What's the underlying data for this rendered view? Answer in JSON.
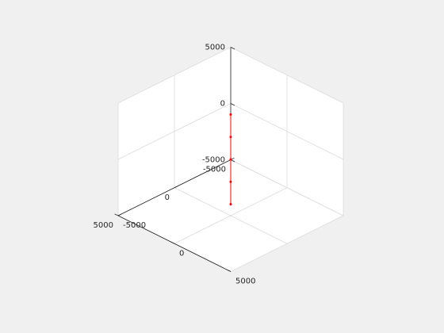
{
  "chart_data": {
    "type": "line",
    "view": "3d-isometric",
    "title": "",
    "xlabel": "",
    "ylabel": "",
    "zlabel": "",
    "xlim": [
      -5000,
      5000
    ],
    "ylim": [
      -5000,
      5000
    ],
    "zlim": [
      -5000,
      5000
    ],
    "grid": true,
    "box": false,
    "x_tick_labels": [
      "-5000",
      "0",
      "5000"
    ],
    "y_tick_labels": [
      "-5000",
      "0",
      "5000"
    ],
    "z_tick_labels": [
      "-5000",
      "0",
      "5000"
    ],
    "series": [
      {
        "color": "#ff0000",
        "marker": "dot",
        "points": [
          {
            "x": 4000,
            "y": 4000,
            "z": 0
          },
          {
            "x": 2000,
            "y": 2000,
            "z": 0
          },
          {
            "x": 0,
            "y": 0,
            "z": 0
          },
          {
            "x": -2000,
            "y": -2000,
            "z": 0
          },
          {
            "x": -4000,
            "y": -4000,
            "z": 0
          }
        ]
      },
      {
        "color": "#ff0000",
        "marker": "dot",
        "points": [
          {
            "x": 0,
            "y": 0,
            "z": 4000
          },
          {
            "x": 0,
            "y": 0,
            "z": 2000
          },
          {
            "x": 0,
            "y": 0,
            "z": 0
          },
          {
            "x": 0,
            "y": 0,
            "z": -2000
          },
          {
            "x": 0,
            "y": 0,
            "z": -4000
          }
        ]
      }
    ]
  },
  "colors": {
    "background": "#f0f0f0",
    "axes_background": "#ffffff",
    "grid": "#dcdcdc",
    "axis_line": "#262626",
    "series": "#ff0000"
  }
}
